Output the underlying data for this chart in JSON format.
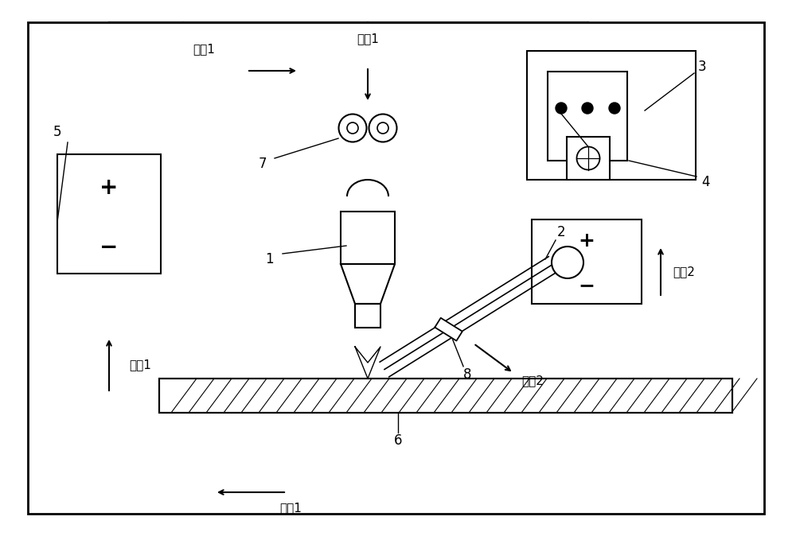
{
  "bg_color": "#ffffff",
  "line_color": "#000000",
  "fig_width": 10.0,
  "fig_height": 6.74,
  "dpi": 100,
  "labels": {
    "zhiliu1_top": "支入1",
    "zhiliu2_right": "支入2",
    "zhiliu1_left": "支入1",
    "zhiliu1_bottom": "支入1",
    "dianliu1": "电入1",
    "n1": "1",
    "n2": "2",
    "n3": "3",
    "n4": "4",
    "n5": "5",
    "n6": "6",
    "n7": "7",
    "n8": "8"
  }
}
